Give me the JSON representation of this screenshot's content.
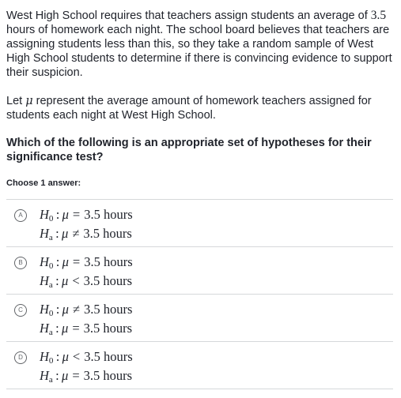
{
  "prompt": {
    "paragraph1_pre": "West High School requires that teachers assign students an average of ",
    "paragraph1_value": "3.5",
    "paragraph1_post": " hours of homework each night. The school board believes that teachers are assigning students less than this, so they take a random sample of West High School students to determine if there is convincing evidence to support their suspicion.",
    "paragraph2_pre": "Let ",
    "paragraph2_symbol": "μ",
    "paragraph2_post": " represent the average amount of homework teachers assigned for students each night at West High School.",
    "question": "Which of the following is an appropriate set of hypotheses for their significance test?",
    "choose_label": "Choose 1 answer:"
  },
  "symbols": {
    "mu": "μ",
    "h": "H",
    "null_sub": "0",
    "alt_sub": "a"
  },
  "choices": [
    {
      "letter": "A",
      "h0_rel": "=",
      "h0_val": "3.5 hours",
      "ha_rel": "≠",
      "ha_val": "3.5 hours"
    },
    {
      "letter": "B",
      "h0_rel": "=",
      "h0_val": "3.5 hours",
      "ha_rel": "<",
      "ha_val": "3.5 hours"
    },
    {
      "letter": "C",
      "h0_rel": "≠",
      "h0_val": "3.5 hours",
      "ha_rel": "=",
      "ha_val": "3.5 hours"
    },
    {
      "letter": "D",
      "h0_rel": "<",
      "h0_val": "3.5 hours",
      "ha_rel": "=",
      "ha_val": "3.5 hours"
    }
  ]
}
